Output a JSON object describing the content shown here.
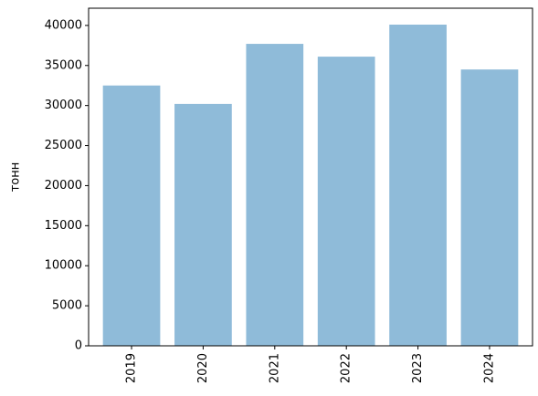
{
  "chart_data": {
    "type": "bar",
    "y_label": "тонн",
    "categories": [
      "2019",
      "2020",
      "2021",
      "2022",
      "2023",
      "2024"
    ],
    "values": [
      32500,
      30200,
      37700,
      36100,
      40100,
      34500
    ],
    "color": "#8fbbd9",
    "ylim": [
      0,
      42150
    ],
    "yticks": [
      0,
      5000,
      10000,
      15000,
      20000,
      25000,
      30000,
      35000,
      40000
    ]
  }
}
